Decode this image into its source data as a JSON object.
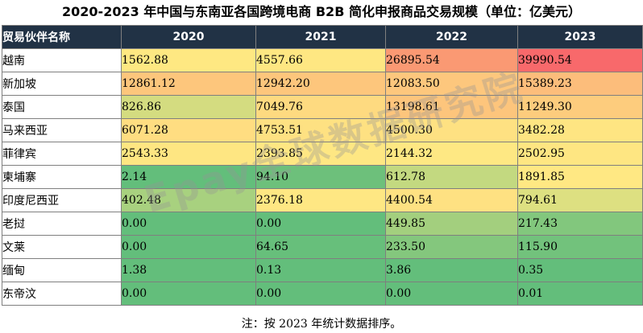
{
  "title": "2020-2023 年中国与东南亚各国跨境电商 B2B 简化申报商品交易规模（单位：亿美元）",
  "watermark": "Epay全球数据研究院",
  "note": "注：按 2023 年统计数据排序。",
  "chart_data": {
    "type": "table",
    "title": "2020-2023 年中国与东南亚各国跨境电商 B2B 简化申报商品交易规模（单位：亿美元）",
    "header_label": "贸易伙伴名称",
    "columns": [
      "2020",
      "2021",
      "2022",
      "2023"
    ],
    "rows": [
      {
        "name": "越南",
        "values": [
          "1562.88",
          "4557.66",
          "26895.54",
          "39990.54"
        ],
        "colors": [
          "#fee882",
          "#fee782",
          "#fa9973",
          "#f8696b"
        ]
      },
      {
        "name": "新加坡",
        "values": [
          "12861.12",
          "12942.20",
          "12083.50",
          "15389.23"
        ],
        "colors": [
          "#fdc67c",
          "#fdc67c",
          "#fdc77d",
          "#fcbd7b"
        ]
      },
      {
        "name": "泰国",
        "values": [
          "826.86",
          "7049.76",
          "13198.61",
          "11249.30"
        ],
        "colors": [
          "#d4dc80",
          "#feda80",
          "#fdc57c",
          "#fdcc7d"
        ]
      },
      {
        "name": "马来西亚",
        "values": [
          "6071.28",
          "4753.51",
          "4500.30",
          "3482.28"
        ],
        "colors": [
          "#ffdd81",
          "#fee182",
          "#fee182",
          "#fee582"
        ]
      },
      {
        "name": "菲律宾",
        "values": [
          "2543.33",
          "2393.85",
          "2144.32",
          "2502.95"
        ],
        "colors": [
          "#fee682",
          "#fee783",
          "#fee883",
          "#fee682"
        ]
      },
      {
        "name": "柬埔寨",
        "values": [
          "2.14",
          "94.10",
          "612.78",
          "1891.85"
        ],
        "colors": [
          "#63be7b",
          "#6dc07b",
          "#c3d980",
          "#ffe883"
        ]
      },
      {
        "name": "印度尼西亚",
        "values": [
          "402.48",
          "2376.18",
          "4400.54",
          "794.61"
        ],
        "colors": [
          "#a8d17f",
          "#fee783",
          "#fee182",
          "#dde081"
        ]
      },
      {
        "name": "老挝",
        "values": [
          "0.00",
          "0.00",
          "449.85",
          "217.43"
        ],
        "colors": [
          "#63be7b",
          "#63be7b",
          "#a3cf7e",
          "#82c77d"
        ]
      },
      {
        "name": "文莱",
        "values": [
          "0.00",
          "64.65",
          "233.50",
          "115.90"
        ],
        "colors": [
          "#63be7b",
          "#67bf7b",
          "#84c77d",
          "#72c27c"
        ]
      },
      {
        "name": "缅甸",
        "values": [
          "1.38",
          "0.13",
          "3.86",
          "0.35"
        ],
        "colors": [
          "#63be7b",
          "#63be7b",
          "#63be7b",
          "#63be7b"
        ]
      },
      {
        "name": "东帝汶",
        "values": [
          "0.00",
          "0.00",
          "0.00",
          "0.01"
        ],
        "colors": [
          "#63be7b",
          "#63be7b",
          "#63be7b",
          "#63be7b"
        ]
      }
    ]
  }
}
